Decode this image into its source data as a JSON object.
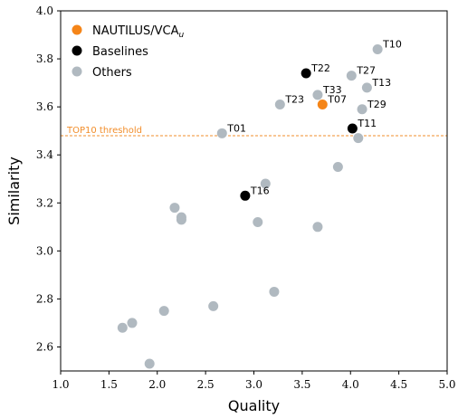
{
  "chart_data": {
    "type": "scatter",
    "xlabel": "Quality",
    "ylabel": "Similarity",
    "xlim": [
      1.0,
      5.0
    ],
    "ylim": [
      2.5,
      4.0
    ],
    "xticks": [
      "1.0",
      "1.5",
      "2.0",
      "2.5",
      "3.0",
      "3.5",
      "4.0",
      "4.5",
      "5.0"
    ],
    "yticks": [
      "2.6",
      "2.8",
      "3.0",
      "3.2",
      "3.4",
      "3.6",
      "3.8",
      "4.0"
    ],
    "threshold": {
      "y": 3.48,
      "label": "TOP10 threshold",
      "color": "#f28e2b"
    },
    "legend": {
      "position": "top-left",
      "entries": [
        {
          "main": "NAUTILUS/VCA",
          "sub": "u",
          "color": "#f58518"
        },
        {
          "main": "Baselines",
          "sub": "",
          "color": "#000000"
        },
        {
          "main": "Others",
          "sub": "",
          "color": "#b0b9c0"
        }
      ]
    },
    "series": [
      {
        "name": "NAUTILUS/VCA",
        "color": "#f58518",
        "points": [
          {
            "x": 3.71,
            "y": 3.61,
            "label": "T07"
          }
        ]
      },
      {
        "name": "Baselines",
        "color": "#000000",
        "points": [
          {
            "x": 3.54,
            "y": 3.74,
            "label": "T22"
          },
          {
            "x": 4.02,
            "y": 3.51,
            "label": "T11"
          },
          {
            "x": 2.91,
            "y": 3.23,
            "label": "T16"
          }
        ]
      },
      {
        "name": "Others",
        "color": "#b0b9c0",
        "points": [
          {
            "x": 4.28,
            "y": 3.84,
            "label": "T10"
          },
          {
            "x": 4.01,
            "y": 3.73,
            "label": "T27"
          },
          {
            "x": 4.17,
            "y": 3.68,
            "label": "T13"
          },
          {
            "x": 3.66,
            "y": 3.65,
            "label": "T33"
          },
          {
            "x": 3.27,
            "y": 3.61,
            "label": "T23"
          },
          {
            "x": 4.12,
            "y": 3.59,
            "label": "T29"
          },
          {
            "x": 2.67,
            "y": 3.49,
            "label": "T01"
          },
          {
            "x": 4.08,
            "y": 3.47,
            "label": ""
          },
          {
            "x": 3.87,
            "y": 3.35,
            "label": ""
          },
          {
            "x": 3.12,
            "y": 3.28,
            "label": ""
          },
          {
            "x": 2.18,
            "y": 3.18,
            "label": ""
          },
          {
            "x": 2.25,
            "y": 3.14,
            "label": ""
          },
          {
            "x": 2.25,
            "y": 3.13,
            "label": ""
          },
          {
            "x": 3.04,
            "y": 3.12,
            "label": ""
          },
          {
            "x": 3.66,
            "y": 3.1,
            "label": ""
          },
          {
            "x": 3.21,
            "y": 2.83,
            "label": ""
          },
          {
            "x": 2.58,
            "y": 2.77,
            "label": ""
          },
          {
            "x": 2.07,
            "y": 2.75,
            "label": ""
          },
          {
            "x": 1.74,
            "y": 2.7,
            "label": ""
          },
          {
            "x": 1.64,
            "y": 2.68,
            "label": ""
          },
          {
            "x": 1.92,
            "y": 2.53,
            "label": ""
          }
        ]
      }
    ]
  }
}
